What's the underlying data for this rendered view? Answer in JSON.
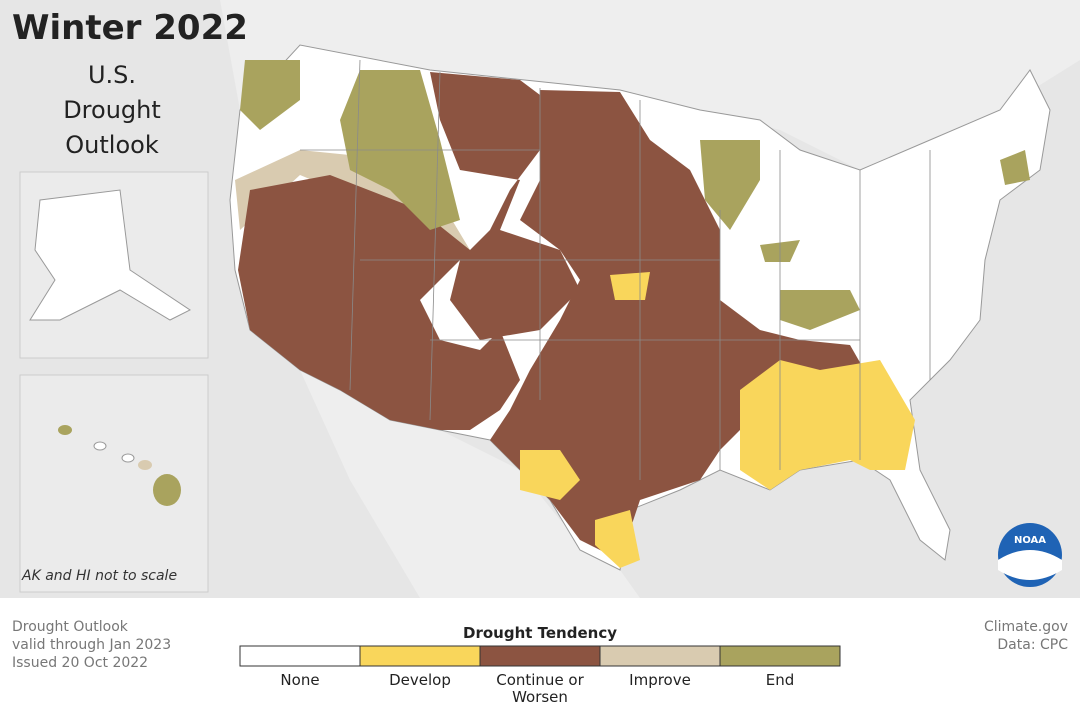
{
  "map": {
    "title": "Winter 2022",
    "subtitle": [
      "U.S.",
      "Drought",
      "Outlook"
    ],
    "inset_note": "AK and HI not to scale",
    "info": [
      "Drought Outlook",
      "valid through Jan 2023",
      "Issued 20 Oct 2022"
    ],
    "credit": [
      "Climate.gov",
      "Data: CPC"
    ],
    "logo": "NOAA",
    "legend": {
      "title": "Drought Tendency",
      "items": [
        {
          "label": "None",
          "color": "#ffffff"
        },
        {
          "label": "Develop",
          "color": "#f9d65b"
        },
        {
          "label": "Continue or Worsen",
          "color": "#8c5441"
        },
        {
          "label": "Improve",
          "color": "#d9cbb0"
        },
        {
          "label": "End",
          "color": "#a9a35e"
        }
      ]
    }
  }
}
